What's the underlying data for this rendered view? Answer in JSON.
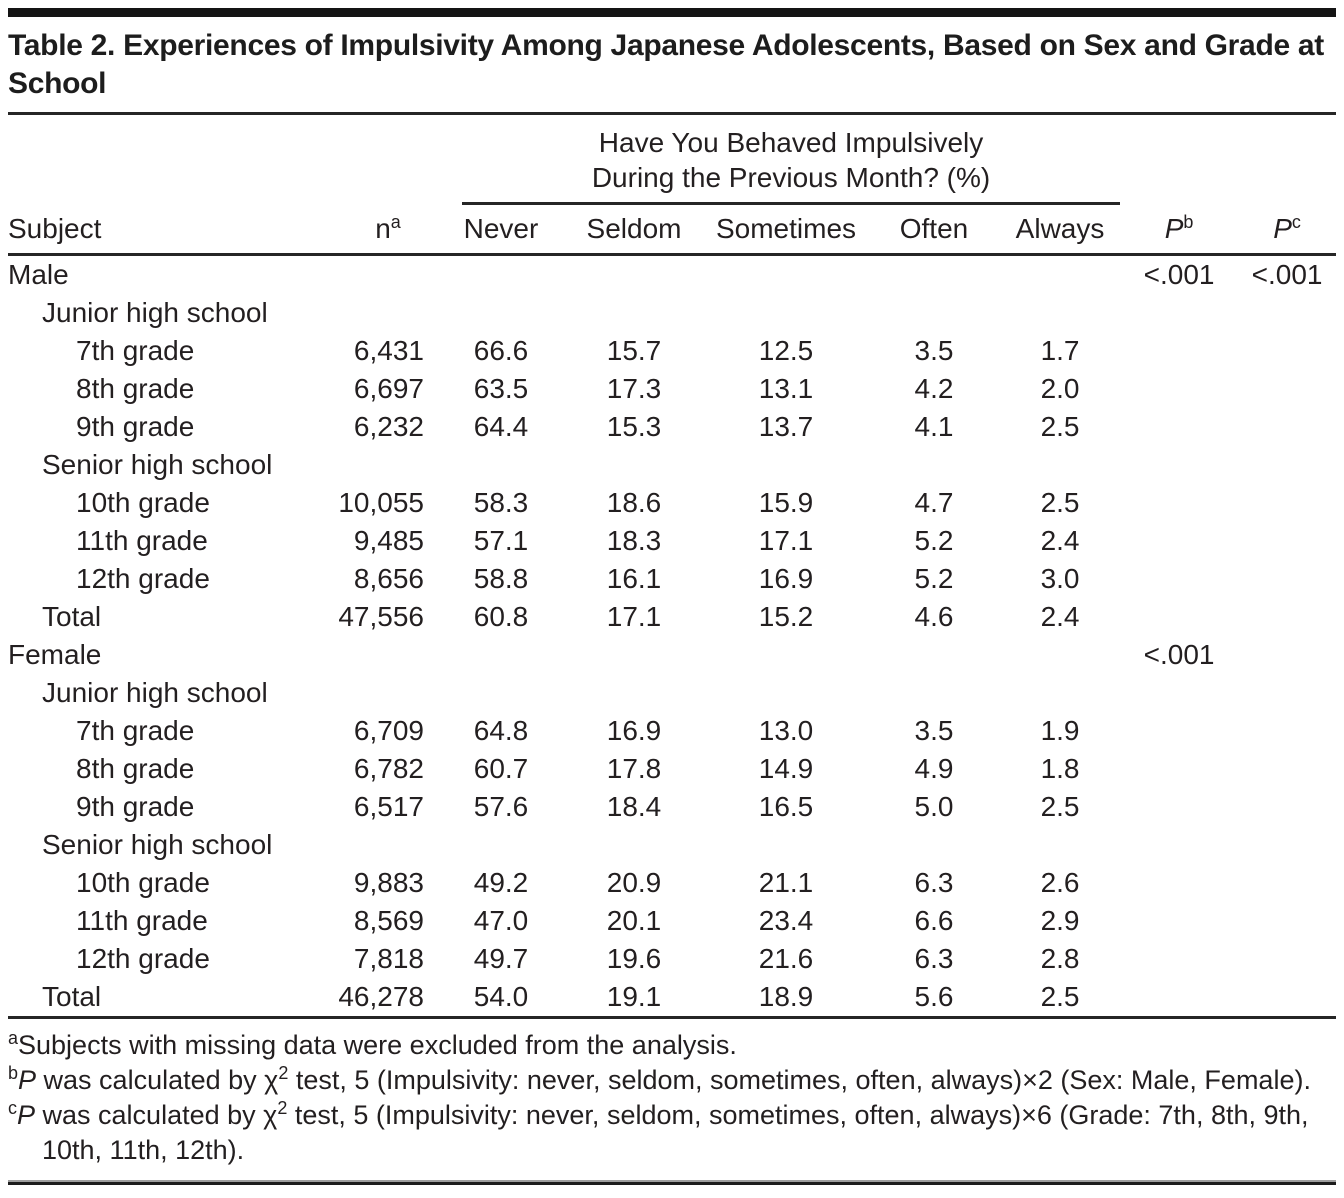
{
  "title": "Table 2. Experiences of Impulsivity Among Japanese Adolescents, Based on Sex and Grade at School",
  "header": {
    "spanner_line1": "Have You Behaved Impulsively",
    "spanner_line2": "During the Previous Month? (%)",
    "subject": "Subject",
    "n_base": "n",
    "n_sup": "a",
    "cols": [
      "Never",
      "Seldom",
      "Sometimes",
      "Often",
      "Always"
    ],
    "pb_base": "P",
    "pb_sup": "b",
    "pc_base": "P",
    "pc_sup": "c"
  },
  "table": {
    "rows": [
      {
        "label": "Male",
        "level": 0,
        "n": "",
        "never": "",
        "seldom": "",
        "sometimes": "",
        "often": "",
        "always": "",
        "pb": "<.001",
        "pc": "<.001"
      },
      {
        "label": "Junior high school",
        "level": 1,
        "n": "",
        "never": "",
        "seldom": "",
        "sometimes": "",
        "often": "",
        "always": "",
        "pb": "",
        "pc": ""
      },
      {
        "label": "7th grade",
        "level": 2,
        "n": "6,431",
        "never": "66.6",
        "seldom": "15.7",
        "sometimes": "12.5",
        "often": "3.5",
        "always": "1.7",
        "pb": "",
        "pc": ""
      },
      {
        "label": "8th grade",
        "level": 2,
        "n": "6,697",
        "never": "63.5",
        "seldom": "17.3",
        "sometimes": "13.1",
        "often": "4.2",
        "always": "2.0",
        "pb": "",
        "pc": ""
      },
      {
        "label": "9th grade",
        "level": 2,
        "n": "6,232",
        "never": "64.4",
        "seldom": "15.3",
        "sometimes": "13.7",
        "often": "4.1",
        "always": "2.5",
        "pb": "",
        "pc": ""
      },
      {
        "label": "Senior high school",
        "level": 1,
        "n": "",
        "never": "",
        "seldom": "",
        "sometimes": "",
        "often": "",
        "always": "",
        "pb": "",
        "pc": ""
      },
      {
        "label": "10th grade",
        "level": 2,
        "n": "10,055",
        "never": "58.3",
        "seldom": "18.6",
        "sometimes": "15.9",
        "often": "4.7",
        "always": "2.5",
        "pb": "",
        "pc": ""
      },
      {
        "label": "11th grade",
        "level": 2,
        "n": "9,485",
        "never": "57.1",
        "seldom": "18.3",
        "sometimes": "17.1",
        "often": "5.2",
        "always": "2.4",
        "pb": "",
        "pc": ""
      },
      {
        "label": "12th grade",
        "level": 2,
        "n": "8,656",
        "never": "58.8",
        "seldom": "16.1",
        "sometimes": "16.9",
        "often": "5.2",
        "always": "3.0",
        "pb": "",
        "pc": ""
      },
      {
        "label": "Total",
        "level": 1,
        "n": "47,556",
        "never": "60.8",
        "seldom": "17.1",
        "sometimes": "15.2",
        "often": "4.6",
        "always": "2.4",
        "pb": "",
        "pc": ""
      },
      {
        "label": "Female",
        "level": 0,
        "n": "",
        "never": "",
        "seldom": "",
        "sometimes": "",
        "often": "",
        "always": "",
        "pb": "<.001",
        "pc": ""
      },
      {
        "label": "Junior high school",
        "level": 1,
        "n": "",
        "never": "",
        "seldom": "",
        "sometimes": "",
        "often": "",
        "always": "",
        "pb": "",
        "pc": ""
      },
      {
        "label": "7th grade",
        "level": 2,
        "n": "6,709",
        "never": "64.8",
        "seldom": "16.9",
        "sometimes": "13.0",
        "often": "3.5",
        "always": "1.9",
        "pb": "",
        "pc": ""
      },
      {
        "label": "8th grade",
        "level": 2,
        "n": "6,782",
        "never": "60.7",
        "seldom": "17.8",
        "sometimes": "14.9",
        "often": "4.9",
        "always": "1.8",
        "pb": "",
        "pc": ""
      },
      {
        "label": "9th grade",
        "level": 2,
        "n": "6,517",
        "never": "57.6",
        "seldom": "18.4",
        "sometimes": "16.5",
        "often": "5.0",
        "always": "2.5",
        "pb": "",
        "pc": ""
      },
      {
        "label": "Senior high school",
        "level": 1,
        "n": "",
        "never": "",
        "seldom": "",
        "sometimes": "",
        "often": "",
        "always": "",
        "pb": "",
        "pc": ""
      },
      {
        "label": "10th grade",
        "level": 2,
        "n": "9,883",
        "never": "49.2",
        "seldom": "20.9",
        "sometimes": "21.1",
        "often": "6.3",
        "always": "2.6",
        "pb": "",
        "pc": ""
      },
      {
        "label": "11th grade",
        "level": 2,
        "n": "8,569",
        "never": "47.0",
        "seldom": "20.1",
        "sometimes": "23.4",
        "often": "6.6",
        "always": "2.9",
        "pb": "",
        "pc": ""
      },
      {
        "label": "12th grade",
        "level": 2,
        "n": "7,818",
        "never": "49.7",
        "seldom": "19.6",
        "sometimes": "21.6",
        "often": "6.3",
        "always": "2.8",
        "pb": "",
        "pc": ""
      },
      {
        "label": "Total",
        "level": 1,
        "n": "46,278",
        "never": "54.0",
        "seldom": "19.1",
        "sometimes": "18.9",
        "often": "5.6",
        "always": "2.5",
        "pb": "",
        "pc": ""
      }
    ]
  },
  "footnotes": {
    "a": {
      "marker": "a",
      "text": "Subjects with missing data were excluded from the analysis."
    },
    "b": {
      "marker": "b",
      "p": "P",
      "pre_chi": " was calculated by χ",
      "chi_sup": "2",
      "rest": " test, 5 (Impulsivity: never, seldom, sometimes, often, always)×2 (Sex: Male, Female)."
    },
    "c": {
      "marker": "c",
      "p": "P",
      "pre_chi": " was calculated by χ",
      "chi_sup": "2",
      "rest": " test, 5 (Impulsivity: never, seldom, sometimes, often, always)×6 (Grade: 7th, 8th, 9th, 10th, 11th, 12th)."
    }
  },
  "colors": {
    "text": "#231f20",
    "rule": "#262626",
    "top_bar": "#141414"
  }
}
